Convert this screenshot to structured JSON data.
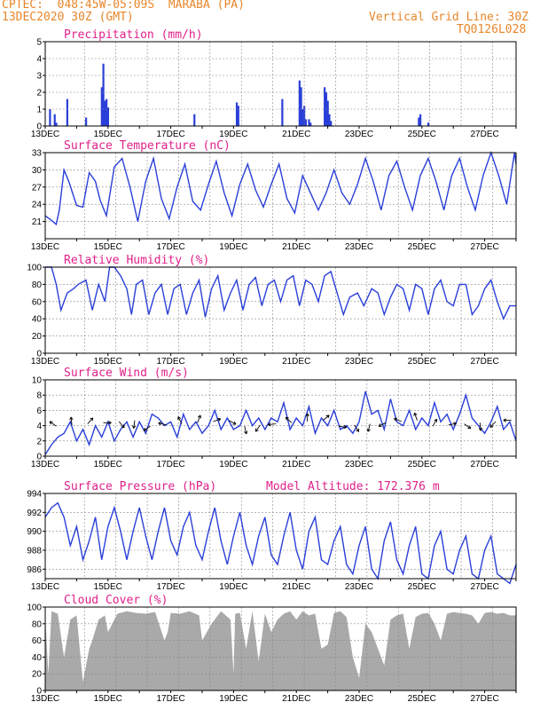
{
  "header": {
    "line1": "CPTEC:  048:45W-05:09S  MARABA (PA)",
    "line2": "13DEC2020 30Z (GMT)",
    "grid_note": "Vertical Grid Line: 30Z",
    "code": "TQ0126L028"
  },
  "model_altitude": "Model Altitude: 172.376 m",
  "colors": {
    "line": "#2a3fd8",
    "bar": "#2a3fd8",
    "cloud": "#a9a9a9",
    "title": "#e0208a",
    "header": "#e8862a",
    "grid": "#888888"
  },
  "x_axis": {
    "labels": [
      "13DEC",
      "15DEC",
      "17DEC",
      "19DEC",
      "21DEC",
      "23DEC",
      "25DEC",
      "27DEC"
    ],
    "start_day": 13,
    "end_day": 28
  },
  "chart_data": [
    {
      "type": "bar",
      "title": "Precipitation (mm/h)",
      "ylim": [
        0,
        5
      ],
      "yticks": [
        "0",
        "1",
        "2",
        "3",
        "4",
        "5"
      ],
      "x": [
        13.15,
        13.3,
        13.35,
        13.7,
        14.3,
        14.8,
        14.85,
        14.9,
        14.95,
        15.0,
        17.75,
        19.1,
        19.15,
        20.55,
        21.1,
        21.15,
        21.2,
        21.25,
        21.3,
        21.4,
        21.45,
        21.9,
        21.95,
        22.0,
        22.05,
        22.1,
        24.9,
        24.95,
        25.2
      ],
      "values": [
        1.0,
        0.7,
        0.2,
        1.6,
        0.5,
        2.3,
        3.7,
        1.5,
        1.6,
        1.1,
        0.7,
        1.4,
        1.2,
        1.6,
        2.7,
        2.3,
        1.0,
        1.2,
        0.4,
        0.4,
        0.2,
        2.3,
        2.0,
        1.5,
        0.7,
        0.3,
        0.5,
        0.7,
        0.2
      ]
    },
    {
      "type": "line",
      "title": "Surface Temperature (nC)",
      "ylim": [
        18,
        33
      ],
      "yticks": [
        "21",
        "24",
        "27",
        "30",
        "33"
      ],
      "ytick_values": [
        21,
        24,
        27,
        30,
        33
      ],
      "x": [
        13.0,
        13.2,
        13.35,
        13.45,
        13.6,
        13.75,
        14.0,
        14.2,
        14.4,
        14.6,
        14.75,
        14.95,
        15.2,
        15.45,
        15.7,
        15.95,
        16.2,
        16.45,
        16.7,
        16.95,
        17.2,
        17.45,
        17.7,
        17.95,
        18.2,
        18.45,
        18.7,
        18.95,
        19.2,
        19.45,
        19.7,
        19.95,
        20.2,
        20.45,
        20.7,
        20.95,
        21.2,
        21.45,
        21.7,
        21.95,
        22.2,
        22.45,
        22.7,
        22.95,
        23.2,
        23.45,
        23.7,
        23.95,
        24.2,
        24.45,
        24.7,
        24.95,
        25.2,
        25.45,
        25.7,
        25.95,
        26.2,
        26.45,
        26.7,
        26.95,
        27.2,
        27.45,
        27.7,
        27.95,
        28.0
      ],
      "values": [
        22,
        21.2,
        20.5,
        23,
        30,
        28,
        23.8,
        23.5,
        29.5,
        28,
        24.7,
        22,
        30.5,
        32,
        27,
        21,
        28,
        32,
        25,
        21.5,
        27,
        31,
        24.5,
        23,
        27.5,
        31.5,
        26,
        22,
        27.5,
        31,
        26.5,
        23.5,
        27.5,
        31,
        25,
        22.5,
        29,
        26,
        23,
        26,
        30,
        26,
        24,
        27.5,
        32,
        28,
        23,
        29,
        31.5,
        27,
        23,
        29,
        32,
        28,
        23,
        29,
        32,
        27,
        23,
        29,
        33,
        29,
        24,
        33,
        31
      ]
    },
    {
      "type": "line",
      "title": "Relative Humidity (%)",
      "ylim": [
        0,
        100
      ],
      "yticks": [
        "0",
        "20",
        "40",
        "60",
        "80",
        "100"
      ],
      "ytick_values": [
        0,
        20,
        40,
        60,
        80,
        100
      ],
      "x": [
        13.0,
        13.2,
        13.35,
        13.5,
        13.7,
        13.9,
        14.05,
        14.3,
        14.5,
        14.7,
        14.9,
        15.05,
        15.2,
        15.4,
        15.6,
        15.75,
        15.9,
        16.1,
        16.3,
        16.5,
        16.7,
        16.9,
        17.1,
        17.3,
        17.5,
        17.7,
        17.9,
        18.1,
        18.3,
        18.5,
        18.7,
        18.9,
        19.1,
        19.3,
        19.5,
        19.7,
        19.9,
        20.1,
        20.3,
        20.5,
        20.7,
        20.9,
        21.1,
        21.3,
        21.5,
        21.7,
        21.9,
        22.1,
        22.3,
        22.5,
        22.7,
        22.95,
        23.15,
        23.4,
        23.6,
        23.8,
        24.0,
        24.2,
        24.4,
        24.6,
        24.8,
        25.0,
        25.2,
        25.4,
        25.6,
        25.8,
        26.0,
        26.2,
        26.4,
        26.6,
        26.8,
        27.0,
        27.2,
        27.4,
        27.6,
        27.8,
        28.0
      ],
      "values": [
        100,
        100,
        80,
        50,
        70,
        75,
        80,
        85,
        50,
        80,
        60,
        100,
        100,
        90,
        75,
        45,
        80,
        85,
        45,
        70,
        80,
        45,
        75,
        80,
        45,
        70,
        85,
        42,
        75,
        90,
        50,
        70,
        85,
        50,
        80,
        88,
        55,
        80,
        85,
        60,
        85,
        90,
        55,
        85,
        80,
        60,
        90,
        95,
        70,
        45,
        65,
        70,
        55,
        75,
        70,
        45,
        65,
        80,
        75,
        50,
        80,
        75,
        45,
        75,
        85,
        60,
        55,
        80,
        80,
        45,
        55,
        75,
        85,
        60,
        40,
        55,
        55
      ]
    },
    {
      "type": "line",
      "title": "Surface Wind (m/s)",
      "ylim": [
        0,
        10
      ],
      "yticks": [
        "0",
        "2",
        "4",
        "6",
        "8",
        "10"
      ],
      "ytick_values": [
        0,
        2,
        4,
        6,
        8,
        10
      ],
      "x": [
        13.0,
        13.2,
        13.4,
        13.6,
        13.8,
        14.0,
        14.2,
        14.4,
        14.6,
        14.8,
        15.0,
        15.2,
        15.4,
        15.6,
        15.8,
        16.0,
        16.2,
        16.4,
        16.6,
        16.8,
        17.0,
        17.2,
        17.4,
        17.6,
        17.8,
        18.0,
        18.2,
        18.4,
        18.6,
        18.8,
        19.0,
        19.2,
        19.4,
        19.6,
        19.8,
        20.0,
        20.2,
        20.4,
        20.6,
        20.8,
        21.0,
        21.2,
        21.4,
        21.6,
        21.8,
        22.0,
        22.2,
        22.4,
        22.6,
        22.8,
        23.0,
        23.2,
        23.4,
        23.6,
        23.8,
        24.0,
        24.2,
        24.4,
        24.6,
        24.8,
        25.0,
        25.2,
        25.4,
        25.6,
        25.8,
        26.0,
        26.2,
        26.4,
        26.6,
        26.8,
        27.0,
        27.2,
        27.4,
        27.6,
        27.8,
        28.0
      ],
      "values": [
        0.2,
        1.5,
        2.5,
        3.0,
        4.5,
        2.0,
        3.5,
        1.5,
        4.0,
        2.5,
        4.5,
        2.0,
        3.5,
        4.5,
        2.5,
        4.5,
        3.0,
        5.5,
        5.0,
        4.0,
        4.5,
        2.5,
        5.5,
        3.5,
        4.5,
        3.0,
        4.0,
        6.0,
        3.5,
        5.0,
        3.5,
        4.0,
        6.0,
        4.0,
        5.0,
        3.5,
        5.0,
        4.5,
        7.0,
        3.5,
        5.0,
        4.0,
        6.5,
        3.0,
        5.0,
        4.0,
        6.0,
        3.5,
        4.0,
        3.0,
        4.5,
        8.5,
        5.5,
        6.0,
        3.5,
        7.5,
        4.5,
        4.0,
        6.0,
        3.5,
        5.0,
        4.0,
        7.0,
        4.5,
        5.5,
        3.5,
        5.5,
        8.0,
        5.0,
        4.0,
        3.0,
        4.5,
        6.5,
        3.5,
        4.5,
        2.0
      ]
    },
    {
      "type": "line",
      "title": "Surface Pressure (hPa)",
      "ylim": [
        985,
        994
      ],
      "yticks": [
        "986",
        "988",
        "990",
        "992",
        "994"
      ],
      "ytick_values": [
        986,
        988,
        990,
        992,
        994
      ],
      "x": [
        13.0,
        13.2,
        13.4,
        13.6,
        13.8,
        14.0,
        14.2,
        14.4,
        14.6,
        14.8,
        15.0,
        15.2,
        15.4,
        15.6,
        15.8,
        16.0,
        16.2,
        16.4,
        16.6,
        16.8,
        17.0,
        17.2,
        17.4,
        17.6,
        17.8,
        18.0,
        18.2,
        18.4,
        18.6,
        18.8,
        19.0,
        19.2,
        19.4,
        19.6,
        19.8,
        20.0,
        20.2,
        20.4,
        20.6,
        20.8,
        21.0,
        21.2,
        21.4,
        21.6,
        21.8,
        22.0,
        22.2,
        22.4,
        22.6,
        22.8,
        23.0,
        23.2,
        23.4,
        23.6,
        23.8,
        24.0,
        24.2,
        24.4,
        24.6,
        24.8,
        25.0,
        25.2,
        25.4,
        25.6,
        25.8,
        26.0,
        26.2,
        26.4,
        26.6,
        26.8,
        27.0,
        27.2,
        27.4,
        27.6,
        27.8,
        28.0
      ],
      "values": [
        991.5,
        992.5,
        993.0,
        991.5,
        988.5,
        990.5,
        987.0,
        989.0,
        991.5,
        987.0,
        990.5,
        992.5,
        990.0,
        987.0,
        990.0,
        992.5,
        989.5,
        987.0,
        990.0,
        992.5,
        989.0,
        987.5,
        990.5,
        992.0,
        988.5,
        987.0,
        990.0,
        992.5,
        989.0,
        986.5,
        989.5,
        992.0,
        988.5,
        986.5,
        989.5,
        991.5,
        987.5,
        986.5,
        989.5,
        992.0,
        988.0,
        986.0,
        990.0,
        991.5,
        987.0,
        986.5,
        989.0,
        990.5,
        986.5,
        985.5,
        988.5,
        990.5,
        986.0,
        985.0,
        989.0,
        991.0,
        987.0,
        985.5,
        988.5,
        990.5,
        985.5,
        985.0,
        988.5,
        990.0,
        986.0,
        985.5,
        988.0,
        989.5,
        985.5,
        985.0,
        988.0,
        989.5,
        985.5,
        985.0,
        984.5,
        986.5
      ]
    },
    {
      "type": "area",
      "title": "Cloud Cover (%)",
      "ylim": [
        0,
        100
      ],
      "yticks": [
        "0",
        "20",
        "40",
        "60",
        "80",
        "100"
      ],
      "ytick_values": [
        0,
        20,
        40,
        60,
        80,
        100
      ],
      "x": [
        13.0,
        13.1,
        13.2,
        13.4,
        13.6,
        13.8,
        14.0,
        14.2,
        14.4,
        14.5,
        14.7,
        14.9,
        15.0,
        15.3,
        15.6,
        15.9,
        16.2,
        16.5,
        16.8,
        16.9,
        17.0,
        17.3,
        17.6,
        17.9,
        18.0,
        18.3,
        18.6,
        18.9,
        19.0,
        19.05,
        19.2,
        19.4,
        19.6,
        19.8,
        20.0,
        20.2,
        20.4,
        20.6,
        20.8,
        21.0,
        21.2,
        21.4,
        21.6,
        21.8,
        22.0,
        22.2,
        22.4,
        22.6,
        22.8,
        23.0,
        23.2,
        23.4,
        23.6,
        23.8,
        24.0,
        24.2,
        24.4,
        24.6,
        24.8,
        25.0,
        25.2,
        25.4,
        25.6,
        25.8,
        26.0,
        26.2,
        26.4,
        26.6,
        26.8,
        27.0,
        27.2,
        27.4,
        27.6,
        27.8,
        28.0
      ],
      "values": [
        90,
        20,
        95,
        92,
        40,
        85,
        90,
        10,
        50,
        60,
        85,
        90,
        70,
        92,
        95,
        93,
        92,
        94,
        60,
        70,
        93,
        92,
        95,
        90,
        60,
        80,
        95,
        85,
        20,
        92,
        93,
        50,
        95,
        35,
        92,
        70,
        85,
        92,
        95,
        85,
        95,
        90,
        92,
        50,
        55,
        93,
        95,
        88,
        40,
        15,
        80,
        70,
        50,
        30,
        85,
        90,
        92,
        50,
        88,
        92,
        93,
        80,
        60,
        92,
        94,
        93,
        92,
        90,
        80,
        93,
        94,
        92,
        93,
        90,
        90
      ]
    }
  ]
}
